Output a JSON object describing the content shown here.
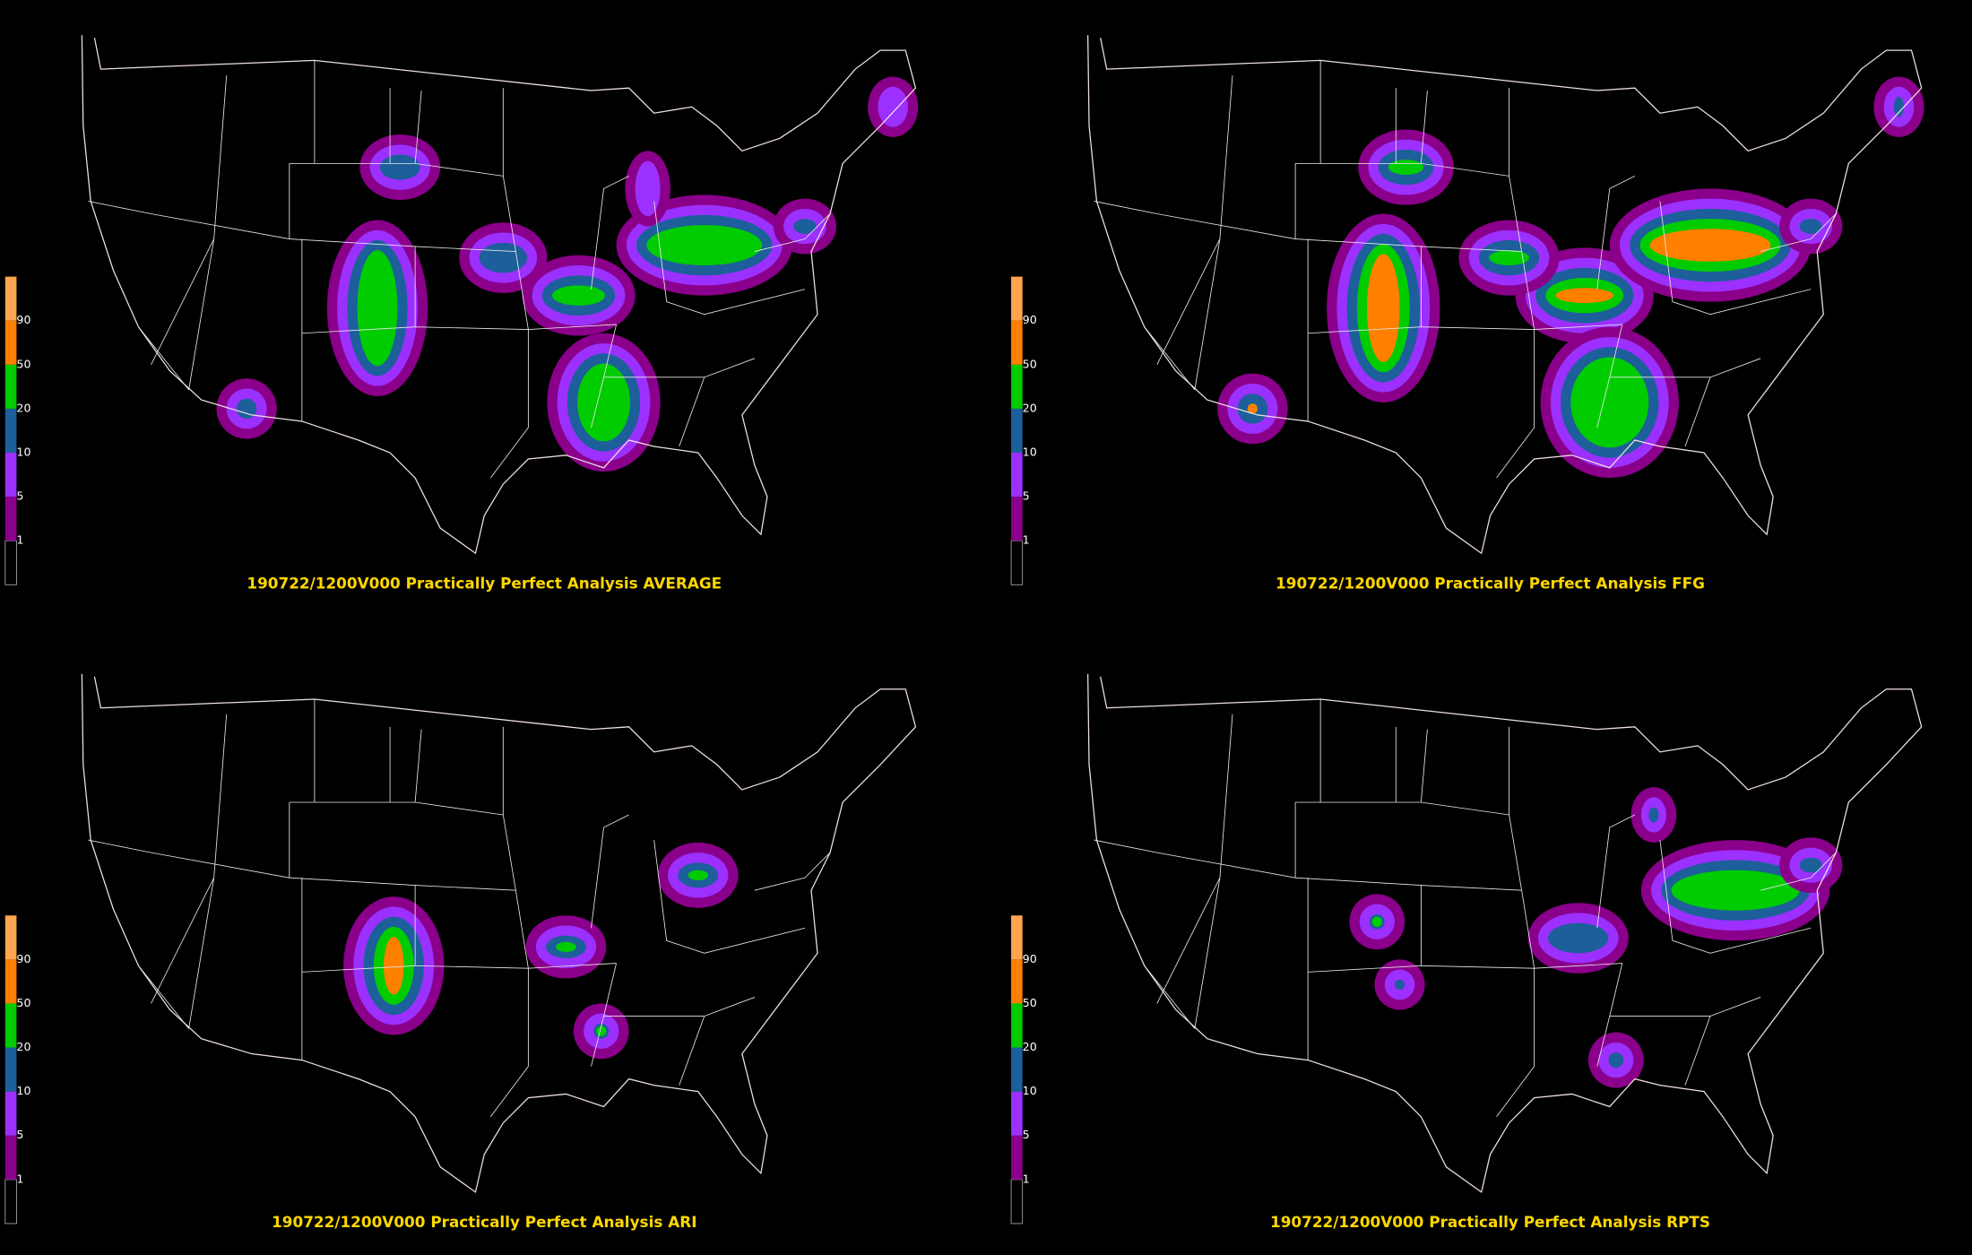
{
  "panels": [
    {
      "title": "190722/1200V000 Practically Perfect Analysis AVERAGE",
      "legend": [
        "1",
        "5",
        "10",
        "20",
        "50",
        "90"
      ]
    },
    {
      "title": "190722/1200V000 Practically Perfect Analysis FFG",
      "legend": [
        "1",
        "5",
        "10",
        "20",
        "50",
        "90"
      ]
    },
    {
      "title": "190722/1200V000 Practically Perfect Analysis ARI",
      "legend": [
        "1",
        "5",
        "10",
        "20",
        "50",
        "90"
      ]
    },
    {
      "title": "190722/1200V000 Practically Perfect Analysis RPTS",
      "legend": [
        "1",
        "5",
        "10",
        "20",
        "50",
        "90"
      ]
    }
  ]
}
